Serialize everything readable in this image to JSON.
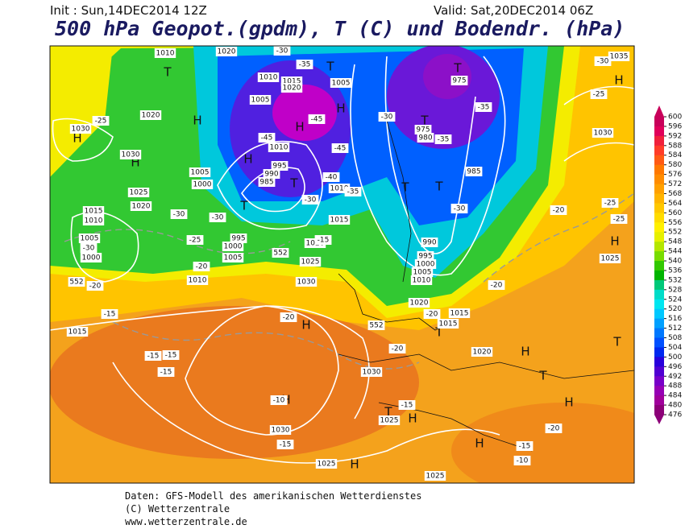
{
  "header": {
    "init": "Init : Sun,14DEC2014 12Z",
    "valid": "Valid: Sat,20DEC2014 06Z",
    "title": "500 hPa Geopot.(gpdm), T (C) und Bodendr. (hPa)"
  },
  "colorbar": {
    "ticks": [
      600,
      596,
      592,
      588,
      584,
      580,
      576,
      572,
      568,
      564,
      560,
      556,
      552,
      548,
      544,
      540,
      536,
      532,
      528,
      524,
      520,
      516,
      512,
      508,
      504,
      500,
      496,
      492,
      488,
      484,
      480,
      476
    ],
    "colors": [
      "#c8005a",
      "#e0005a",
      "#f0203c",
      "#ff3c28",
      "#ff5a14",
      "#ff7800",
      "#ff8c00",
      "#ffa000",
      "#ffb400",
      "#ffc800",
      "#ffdc00",
      "#fff000",
      "#e6f000",
      "#b4e600",
      "#78dc00",
      "#32c800",
      "#00b400",
      "#00c878",
      "#00dcc8",
      "#00e6f0",
      "#00c8ff",
      "#00a0ff",
      "#0078ff",
      "#0050ff",
      "#0028f0",
      "#2800dc",
      "#5000d2",
      "#7800c8",
      "#9600b4",
      "#a0009b",
      "#8c0078"
    ]
  },
  "map_labels": [
    "H",
    "H",
    "H",
    "H",
    "H",
    "H",
    "H",
    "H",
    "H",
    "H",
    "H",
    "H",
    "H",
    "H",
    "H",
    "T",
    "T",
    "T",
    "T",
    "T",
    "T",
    "T",
    "T",
    "T",
    "T",
    "T",
    "T",
    "1010",
    "1020",
    "1010",
    "1015",
    "1020",
    "1005",
    "1005",
    "1020",
    "1030",
    "1030",
    "1010",
    "995",
    "990",
    "985",
    "1005",
    "1000",
    "1025",
    "1020",
    "1015",
    "1010",
    "1005",
    "1000",
    "1010",
    "1015",
    "995",
    "1000",
    "1005",
    "1020",
    "1025",
    "1010",
    "1030",
    "1015",
    "975",
    "975",
    "980",
    "985",
    "990",
    "995",
    "1000",
    "1005",
    "1010",
    "1020",
    "1015",
    "1015",
    "1020",
    "1030",
    "1030",
    "1025",
    "1025",
    "1025",
    "1025",
    "1030",
    "1035",
    "-30",
    "-35",
    "-45",
    "-45",
    "-45",
    "-40",
    "-35",
    "-30",
    "-30",
    "-30",
    "-25",
    "-20",
    "-30",
    "-20",
    "-15",
    "-20",
    "-15",
    "-30",
    "-35",
    "-35",
    "-30",
    "-25",
    "-30",
    "-25",
    "-25",
    "-25",
    "-20",
    "-20",
    "-15",
    "-15",
    "-15",
    "-10",
    "-15",
    "-20",
    "-20",
    "-20",
    "-15",
    "-10",
    "-15",
    "552",
    "552",
    "552"
  ],
  "footer": [
    "Daten: GFS-Modell des amerikanischen Wetterdienstes",
    "(C) Wetterzentrale",
    "www.wetterzentrale.de"
  ]
}
